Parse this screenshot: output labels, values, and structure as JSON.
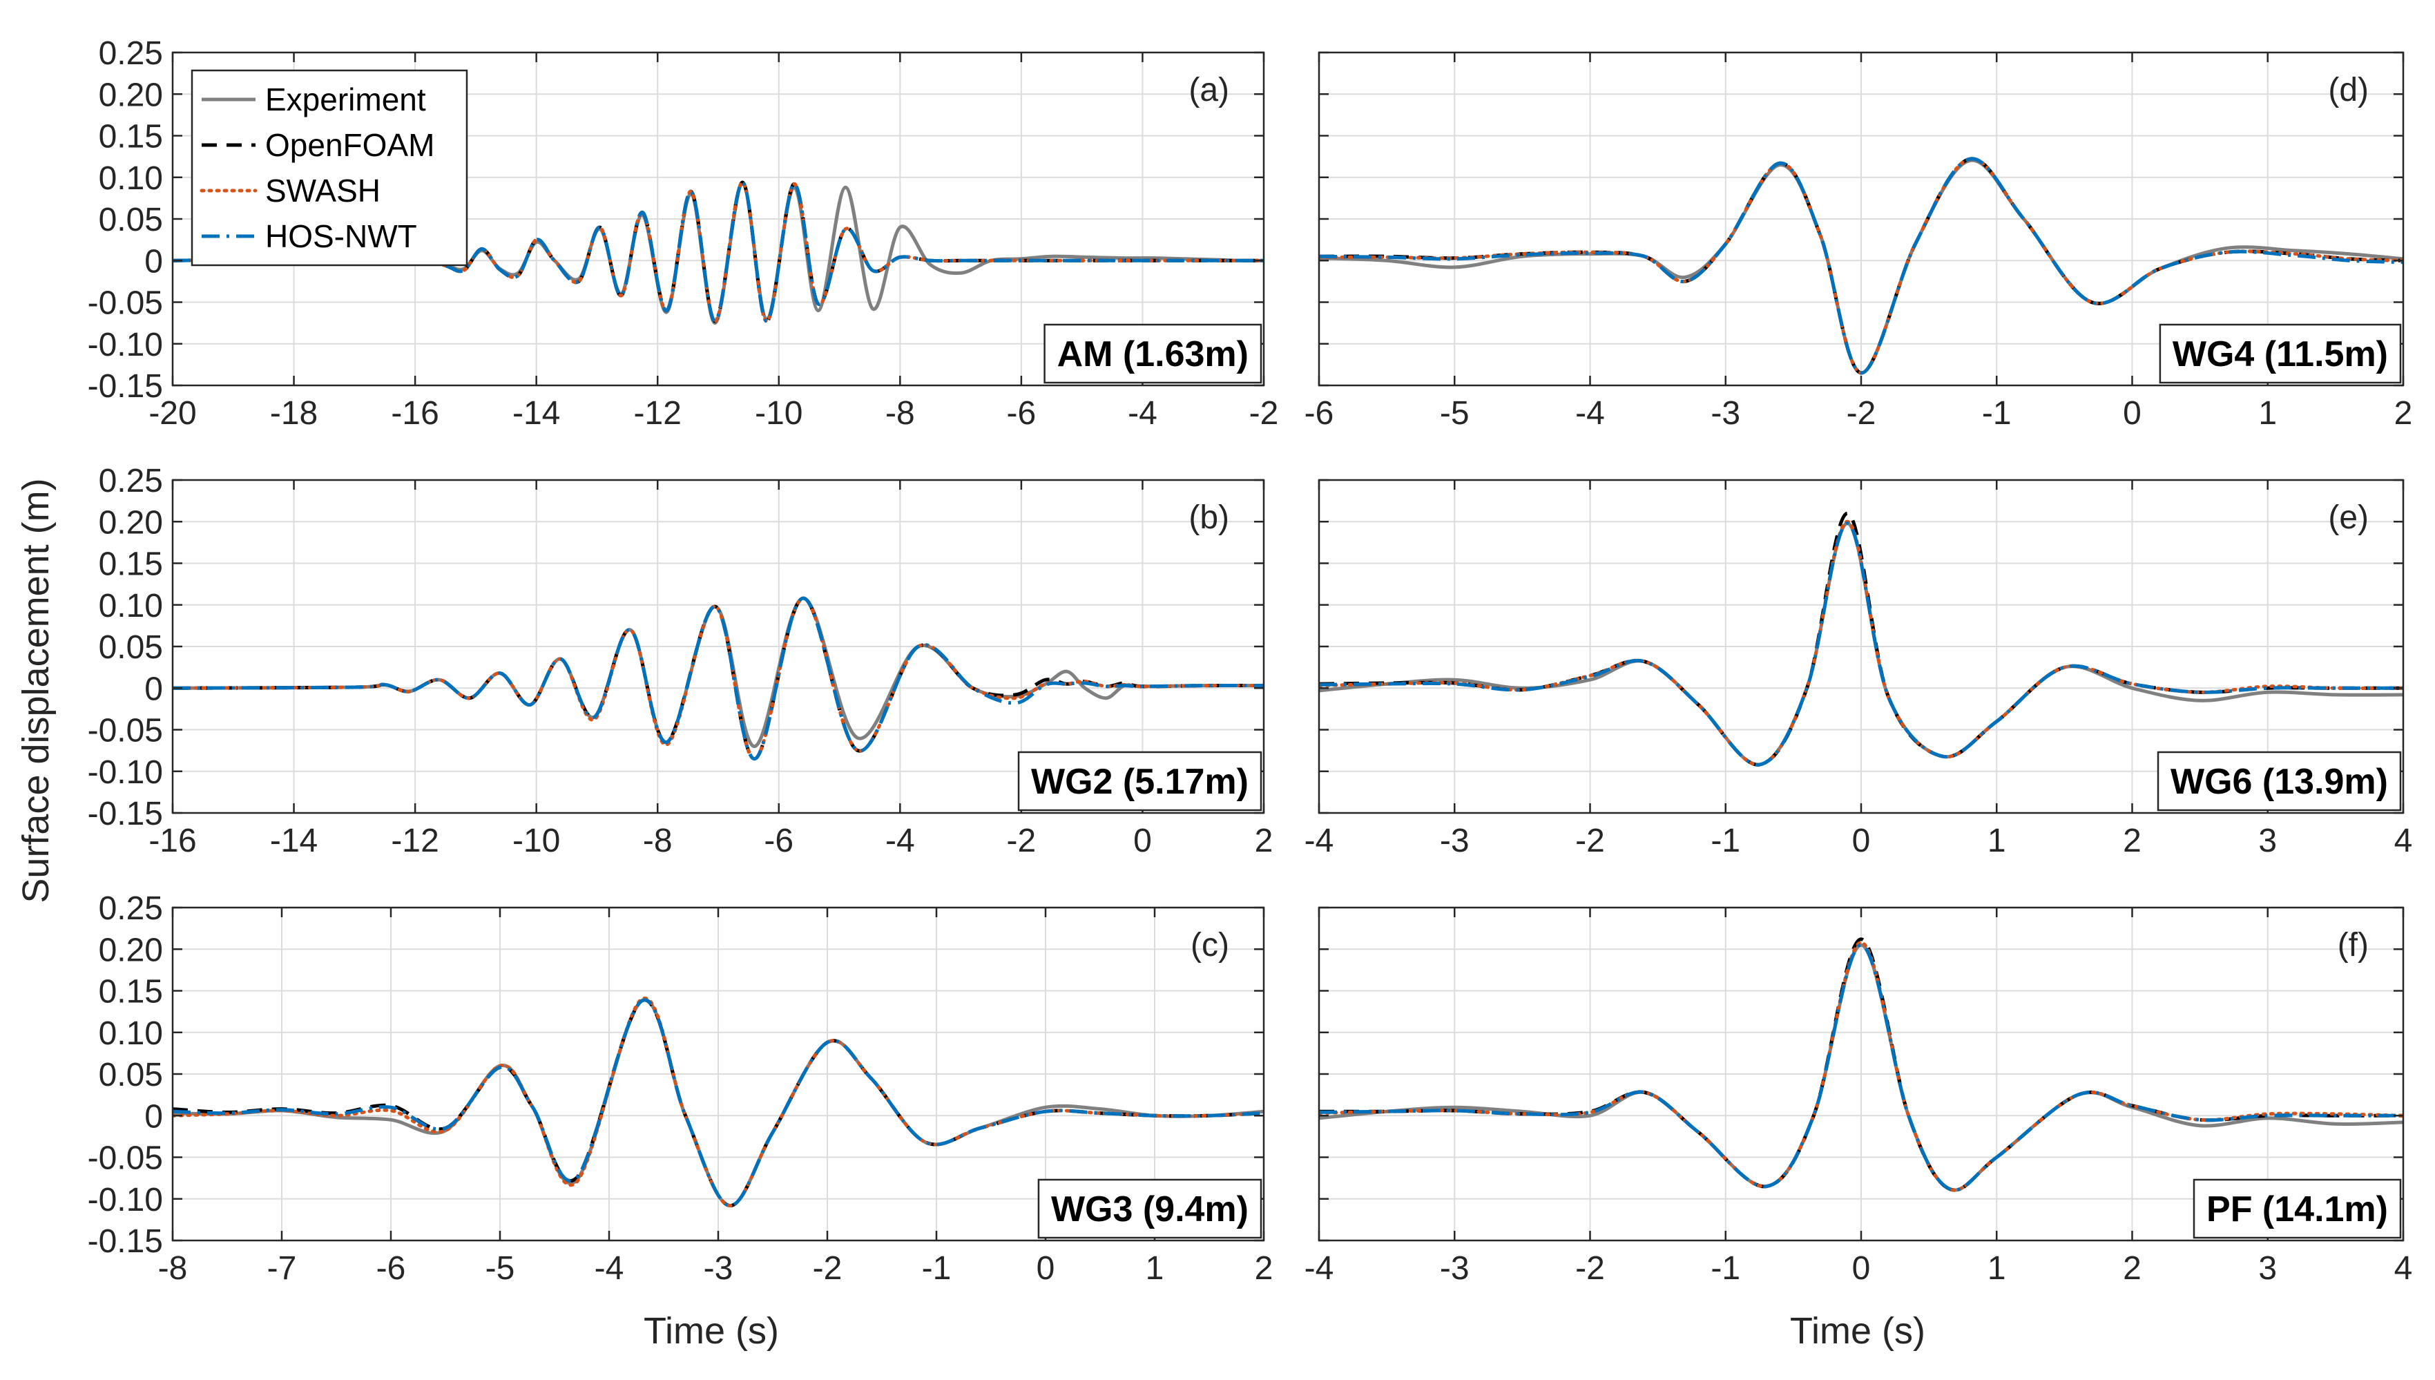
{
  "figure": {
    "ylabel": "Surface displacement (m)",
    "xlabel": "Time (s)"
  },
  "legend": [
    {
      "label": "Experiment",
      "color": "#808080",
      "style": "solid"
    },
    {
      "label": "OpenFOAM",
      "color": "#000000",
      "style": "dashed"
    },
    {
      "label": "SWASH",
      "color": "#D95319",
      "style": "dotted"
    },
    {
      "label": "HOS-NWT",
      "color": "#0072BD",
      "style": "dashdot"
    }
  ],
  "chart_data": [
    {
      "type": "line",
      "panel_id": "(a)",
      "location_label": "AM (1.63m)",
      "xlabel": "",
      "ylabel": "Surface displacement (m)",
      "xlim": [
        -20,
        -2
      ],
      "ylim": [
        -0.15,
        0.25
      ],
      "xticks": [
        -20,
        -18,
        -16,
        -14,
        -12,
        -10,
        -8,
        -6,
        -4,
        -2
      ],
      "yticks": [
        -0.15,
        -0.1,
        -0.05,
        0,
        0.05,
        0.1,
        0.15,
        0.2,
        0.25
      ],
      "ytick_labels": [
        "-0.15",
        "-0.10",
        "-0.05",
        "0",
        "0.05",
        "0.10",
        "0.15",
        "0.20",
        "0.25"
      ],
      "show_legend": true,
      "legend_location": "top-left",
      "x": [
        -20,
        -18,
        -17,
        -16.5,
        -16,
        -15.5,
        -15.2,
        -14.9,
        -14.6,
        -14.3,
        -14,
        -13.7,
        -13.3,
        -12.95,
        -12.6,
        -12.25,
        -11.85,
        -11.45,
        -11.05,
        -10.6,
        -10.2,
        -9.75,
        -9.35,
        -8.9,
        -8.45,
        -8,
        -7.5,
        -7,
        -6.5,
        -6.0,
        -5.5,
        -4.9,
        -4.3,
        -3.8,
        -3.3,
        -2.8,
        -2.4,
        -2
      ],
      "series": [
        {
          "name": "Experiment",
          "values": [
            0,
            0.002,
            0.004,
            -0.002,
            0.005,
            -0.005,
            -0.01,
            0.012,
            -0.01,
            -0.015,
            0.022,
            0.0,
            -0.022,
            0.038,
            -0.04,
            0.055,
            -0.062,
            0.08,
            -0.075,
            0.092,
            -0.07,
            0.088,
            -0.06,
            0.088,
            -0.058,
            0.04,
            -0.005,
            -0.015,
            0.0,
            0.002,
            0.005,
            0.004,
            0.003,
            0.003,
            0.002,
            0.001,
            0.0,
            0.0
          ]
        },
        {
          "name": "OpenFOAM",
          "values": [
            0,
            0.002,
            0.004,
            -0.002,
            0.006,
            -0.006,
            -0.012,
            0.014,
            -0.011,
            -0.018,
            0.025,
            0.0,
            -0.025,
            0.04,
            -0.042,
            0.058,
            -0.06,
            0.083,
            -0.073,
            0.094,
            -0.073,
            0.092,
            -0.052,
            0.038,
            -0.012,
            0.004,
            0.0,
            0.0,
            0.0,
            0.0,
            0.0,
            0.0,
            0.0,
            0.0,
            0.0,
            0.0,
            0.0,
            0.0
          ]
        },
        {
          "name": "SWASH",
          "values": [
            0,
            0.002,
            0.004,
            -0.002,
            0.006,
            -0.006,
            -0.012,
            0.014,
            -0.011,
            -0.018,
            0.025,
            0.0,
            -0.025,
            0.04,
            -0.042,
            0.058,
            -0.06,
            0.083,
            -0.073,
            0.094,
            -0.073,
            0.092,
            -0.052,
            0.038,
            -0.012,
            0.004,
            0.0,
            0.0,
            0.0,
            0.0,
            0.0,
            0.0,
            0.0,
            0.0,
            0.0,
            0.0,
            0.0,
            0.0
          ]
        },
        {
          "name": "HOS-NWT",
          "values": [
            0,
            0.002,
            0.004,
            -0.002,
            0.006,
            -0.006,
            -0.012,
            0.014,
            -0.011,
            -0.018,
            0.025,
            0.0,
            -0.025,
            0.04,
            -0.042,
            0.058,
            -0.06,
            0.083,
            -0.073,
            0.094,
            -0.073,
            0.092,
            -0.052,
            0.038,
            -0.012,
            0.004,
            0.0,
            0.0,
            0.0,
            0.0,
            0.0,
            0.0,
            0.0,
            0.0,
            0.0,
            0.0,
            0.0,
            0.0
          ]
        }
      ]
    },
    {
      "type": "line",
      "panel_id": "(b)",
      "location_label": "WG2 (5.17m)",
      "xlabel": "",
      "ylabel": "Surface displacement (m)",
      "xlim": [
        -16,
        2
      ],
      "ylim": [
        -0.15,
        0.25
      ],
      "xticks": [
        -16,
        -14,
        -12,
        -10,
        -8,
        -6,
        -4,
        -2,
        0,
        2
      ],
      "yticks": [
        -0.15,
        -0.1,
        -0.05,
        0,
        0.05,
        0.1,
        0.15,
        0.2,
        0.25
      ],
      "ytick_labels": [
        "-0.15",
        "-0.10",
        "-0.05",
        "0",
        "0.05",
        "0.10",
        "0.15",
        "0.20",
        "0.25"
      ],
      "show_legend": false,
      "x": [
        -16,
        -13,
        -12.5,
        -12.1,
        -11.6,
        -11.1,
        -10.6,
        -10.1,
        -9.6,
        -9.05,
        -8.45,
        -7.85,
        -7.05,
        -6.4,
        -5.6,
        -4.7,
        -3.7,
        -2.8,
        -2.1,
        -1.6,
        -1.25,
        -0.95,
        -0.6,
        -0.3,
        0,
        1,
        2
      ],
      "series": [
        {
          "name": "Experiment",
          "values": [
            0,
            0.001,
            0.004,
            -0.004,
            0.01,
            -0.012,
            0.018,
            -0.02,
            0.035,
            -0.035,
            0.07,
            -0.065,
            0.098,
            -0.07,
            0.108,
            -0.06,
            0.05,
            0.0,
            -0.01,
            0.005,
            0.02,
            0.0,
            -0.012,
            0.003,
            0.002,
            0.003,
            0.003
          ]
        },
        {
          "name": "OpenFOAM",
          "values": [
            0,
            0.001,
            0.004,
            -0.004,
            0.01,
            -0.012,
            0.018,
            -0.02,
            0.035,
            -0.035,
            0.07,
            -0.065,
            0.098,
            -0.085,
            0.108,
            -0.075,
            0.05,
            0.0,
            -0.008,
            0.01,
            0.005,
            0.008,
            0.002,
            0.006,
            0.002,
            0.003,
            0.003
          ]
        },
        {
          "name": "SWASH",
          "values": [
            0,
            0.001,
            0.004,
            -0.004,
            0.01,
            -0.012,
            0.018,
            -0.02,
            0.035,
            -0.038,
            0.07,
            -0.068,
            0.098,
            -0.085,
            0.108,
            -0.075,
            0.05,
            0.0,
            -0.012,
            0.005,
            0.005,
            0.008,
            0.002,
            0.004,
            0.002,
            0.003,
            0.003
          ]
        },
        {
          "name": "HOS-NWT",
          "values": [
            0,
            0.001,
            0.004,
            -0.004,
            0.01,
            -0.012,
            0.018,
            -0.02,
            0.035,
            -0.035,
            0.07,
            -0.065,
            0.098,
            -0.085,
            0.108,
            -0.075,
            0.05,
            0.0,
            -0.018,
            0.004,
            0.005,
            0.006,
            0.002,
            0.003,
            0.002,
            0.003,
            0.003
          ]
        }
      ]
    },
    {
      "type": "line",
      "panel_id": "(c)",
      "location_label": "WG3 (9.4m)",
      "xlabel": "Time (s)",
      "ylabel": "Surface displacement (m)",
      "xlim": [
        -8,
        2
      ],
      "ylim": [
        -0.15,
        0.25
      ],
      "xticks": [
        -8,
        -7,
        -6,
        -5,
        -4,
        -3,
        -2,
        -1,
        0,
        1,
        2
      ],
      "yticks": [
        -0.15,
        -0.1,
        -0.05,
        0,
        0.05,
        0.1,
        0.15,
        0.2,
        0.25
      ],
      "ytick_labels": [
        "-0.15",
        "-0.10",
        "-0.05",
        "0",
        "0.05",
        "0.10",
        "0.15",
        "0.20",
        "0.25"
      ],
      "show_legend": false,
      "x": [
        -8,
        -7.5,
        -7,
        -6.5,
        -6,
        -5.5,
        -5,
        -4.7,
        -4.3,
        -3.7,
        -3.3,
        -2.9,
        -2.5,
        -2.0,
        -1.6,
        -1.1,
        -0.6,
        0,
        0.5,
        1,
        1.5,
        2
      ],
      "series": [
        {
          "name": "Experiment",
          "values": [
            0.003,
            0.002,
            0.006,
            -0.002,
            -0.005,
            -0.018,
            0.06,
            0.01,
            -0.078,
            0.138,
            0.0,
            -0.108,
            -0.02,
            0.088,
            0.045,
            -0.032,
            -0.015,
            0.01,
            0.008,
            0.0,
            0.0,
            0.005
          ]
        },
        {
          "name": "OpenFOAM",
          "values": [
            0.008,
            0.004,
            0.008,
            0.003,
            0.012,
            -0.015,
            0.058,
            0.01,
            -0.075,
            0.138,
            0.0,
            -0.108,
            -0.02,
            0.088,
            0.045,
            -0.032,
            -0.015,
            0.005,
            0.003,
            0.0,
            0.0,
            0.003
          ]
        },
        {
          "name": "SWASH",
          "values": [
            0.0,
            0.002,
            0.006,
            0.0,
            0.006,
            -0.018,
            0.06,
            0.01,
            -0.08,
            0.14,
            0.0,
            -0.108,
            -0.02,
            0.088,
            0.045,
            -0.032,
            -0.015,
            0.005,
            0.003,
            0.0,
            0.0,
            0.003
          ]
        },
        {
          "name": "HOS-NWT",
          "values": [
            0.005,
            0.003,
            0.007,
            0.002,
            0.01,
            -0.015,
            0.058,
            0.01,
            -0.075,
            0.138,
            0.0,
            -0.108,
            -0.02,
            0.088,
            0.045,
            -0.032,
            -0.015,
            0.005,
            0.003,
            0.0,
            0.0,
            0.003
          ]
        }
      ]
    },
    {
      "type": "line",
      "panel_id": "(d)",
      "location_label": "WG4 (11.5m)",
      "xlabel": "",
      "ylabel": "",
      "xlim": [
        -6,
        2
      ],
      "ylim": [
        -0.15,
        0.25
      ],
      "xticks": [
        -6,
        -5,
        -4,
        -3,
        -2,
        -1,
        0,
        1,
        2
      ],
      "yticks": [
        -0.15,
        -0.1,
        -0.05,
        0,
        0.05,
        0.1,
        0.15,
        0.2,
        0.25
      ],
      "show_legend": false,
      "x": [
        -6,
        -5.5,
        -5,
        -4.5,
        -4,
        -3.6,
        -3.3,
        -3.0,
        -2.6,
        -2.3,
        -2.0,
        -1.6,
        -1.2,
        -0.8,
        -0.3,
        0.2,
        0.7,
        1.2,
        1.6,
        2
      ],
      "series": [
        {
          "name": "Experiment",
          "values": [
            0.003,
            0.0,
            -0.008,
            0.005,
            0.008,
            0.005,
            -0.02,
            0.02,
            0.115,
            0.03,
            -0.135,
            0.02,
            0.12,
            0.05,
            -0.05,
            -0.01,
            0.015,
            0.012,
            0.008,
            0.002
          ]
        },
        {
          "name": "OpenFOAM",
          "values": [
            0.005,
            0.005,
            0.003,
            0.008,
            0.01,
            0.005,
            -0.025,
            0.02,
            0.117,
            0.03,
            -0.135,
            0.02,
            0.122,
            0.05,
            -0.05,
            -0.01,
            0.01,
            0.008,
            0.002,
            0.0
          ]
        },
        {
          "name": "SWASH",
          "values": [
            0.004,
            0.004,
            0.003,
            0.008,
            0.01,
            0.005,
            -0.025,
            0.02,
            0.117,
            0.03,
            -0.135,
            0.02,
            0.122,
            0.05,
            -0.05,
            -0.01,
            0.01,
            0.008,
            0.002,
            0.0
          ]
        },
        {
          "name": "HOS-NWT",
          "values": [
            0.005,
            0.004,
            0.002,
            0.007,
            0.009,
            0.005,
            -0.025,
            0.02,
            0.117,
            0.03,
            -0.135,
            0.02,
            0.122,
            0.05,
            -0.05,
            -0.01,
            0.01,
            0.006,
            0.0,
            -0.002
          ]
        }
      ]
    },
    {
      "type": "line",
      "panel_id": "(e)",
      "location_label": "WG6 (13.9m)",
      "xlabel": "",
      "ylabel": "",
      "xlim": [
        -4,
        4
      ],
      "ylim": [
        -0.15,
        0.25
      ],
      "xticks": [
        -4,
        -3,
        -2,
        -1,
        0,
        1,
        2,
        3,
        4
      ],
      "yticks": [
        -0.15,
        -0.1,
        -0.05,
        0,
        0.05,
        0.1,
        0.15,
        0.2,
        0.25
      ],
      "show_legend": false,
      "x": [
        -4,
        -3.5,
        -3,
        -2.5,
        -2,
        -1.6,
        -1.2,
        -0.75,
        -0.4,
        -0.1,
        0.2,
        0.6,
        1,
        1.5,
        2,
        2.5,
        3,
        3.5,
        4
      ],
      "series": [
        {
          "name": "Experiment",
          "values": [
            -0.003,
            0.005,
            0.01,
            0.0,
            0.01,
            0.032,
            -0.02,
            -0.092,
            0.0,
            0.198,
            -0.01,
            -0.082,
            -0.04,
            0.025,
            0.0,
            -0.015,
            -0.005,
            -0.008,
            -0.008
          ]
        },
        {
          "name": "OpenFOAM",
          "values": [
            0.005,
            0.006,
            0.006,
            -0.002,
            0.015,
            0.032,
            -0.02,
            -0.092,
            0.0,
            0.21,
            -0.01,
            -0.082,
            -0.04,
            0.025,
            0.005,
            -0.005,
            0.0,
            0.0,
            0.0
          ]
        },
        {
          "name": "SWASH",
          "values": [
            0.003,
            0.005,
            0.006,
            -0.002,
            0.015,
            0.032,
            -0.02,
            -0.092,
            0.0,
            0.2,
            -0.01,
            -0.082,
            -0.04,
            0.025,
            0.005,
            -0.005,
            0.002,
            0.0,
            0.0
          ]
        },
        {
          "name": "HOS-NWT",
          "values": [
            0.004,
            0.005,
            0.005,
            -0.002,
            0.014,
            0.032,
            -0.02,
            -0.092,
            0.0,
            0.198,
            -0.01,
            -0.082,
            -0.04,
            0.025,
            0.005,
            -0.005,
            0.0,
            0.0,
            0.0
          ]
        }
      ]
    },
    {
      "type": "line",
      "panel_id": "(f)",
      "location_label": "PF (14.1m)",
      "xlabel": "Time (s)",
      "ylabel": "",
      "xlim": [
        -4,
        4
      ],
      "ylim": [
        -0.15,
        0.25
      ],
      "xticks": [
        -4,
        -3,
        -2,
        -1,
        0,
        1,
        2,
        3,
        4
      ],
      "yticks": [
        -0.15,
        -0.1,
        -0.05,
        0,
        0.05,
        0.1,
        0.15,
        0.2,
        0.25
      ],
      "show_legend": false,
      "x": [
        -4,
        -3.5,
        -3,
        -2.5,
        -2,
        -1.6,
        -1.2,
        -0.7,
        -0.35,
        0,
        0.35,
        0.65,
        1,
        1.6,
        2,
        2.5,
        3,
        3.5,
        4
      ],
      "series": [
        {
          "name": "Experiment",
          "values": [
            -0.003,
            0.005,
            0.01,
            0.005,
            0.0,
            0.028,
            -0.02,
            -0.085,
            0.0,
            0.205,
            0.0,
            -0.088,
            -0.05,
            0.025,
            0.01,
            -0.012,
            -0.003,
            -0.01,
            -0.008
          ]
        },
        {
          "name": "OpenFOAM",
          "values": [
            0.005,
            0.005,
            0.006,
            0.002,
            0.005,
            0.028,
            -0.02,
            -0.085,
            0.0,
            0.212,
            0.0,
            -0.088,
            -0.05,
            0.025,
            0.012,
            -0.005,
            0.0,
            0.0,
            0.0
          ]
        },
        {
          "name": "SWASH",
          "values": [
            0.003,
            0.005,
            0.006,
            0.002,
            0.004,
            0.028,
            -0.02,
            -0.085,
            0.0,
            0.208,
            0.0,
            -0.088,
            -0.05,
            0.025,
            0.012,
            -0.005,
            0.002,
            0.002,
            0.0
          ]
        },
        {
          "name": "HOS-NWT",
          "values": [
            0.004,
            0.005,
            0.006,
            0.002,
            0.004,
            0.028,
            -0.02,
            -0.085,
            0.0,
            0.205,
            0.0,
            -0.088,
            -0.05,
            0.025,
            0.012,
            -0.005,
            0.0,
            0.0,
            0.0
          ]
        }
      ]
    }
  ]
}
